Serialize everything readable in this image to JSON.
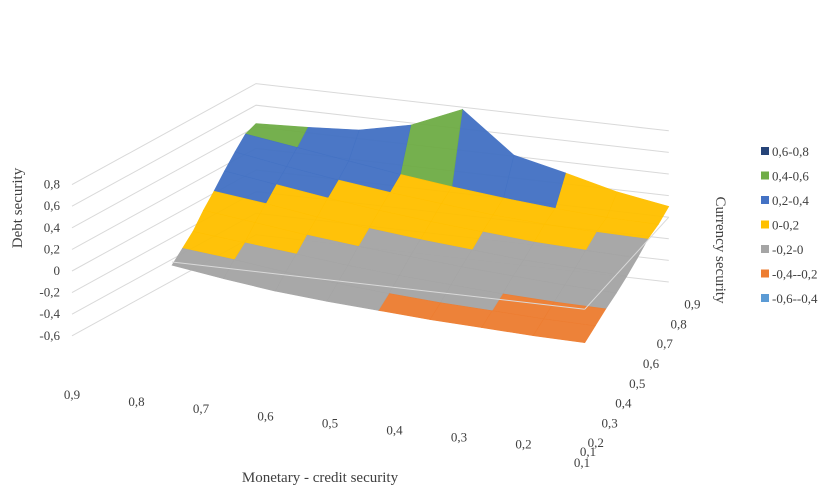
{
  "chart_data": {
    "type": "surface",
    "title": "",
    "xlabel": "Monetary - credit security",
    "ylabel": "Debt security",
    "zlabel": "Currency security",
    "x_ticks": [
      "0,9",
      "0,8",
      "0,7",
      "0,6",
      "0,5",
      "0,4",
      "0,3",
      "0,2",
      "0,1"
    ],
    "depth_ticks": [
      "0,1",
      "0,2",
      "0,3",
      "0,4",
      "0,5",
      "0,6",
      "0,7",
      "0,8",
      "0,9"
    ],
    "y_ticks": [
      "0,8",
      "0,6",
      "0,4",
      "0,2",
      "0",
      "-0,2",
      "-0,4",
      "-0,6"
    ],
    "ylim": [
      -0.6,
      0.8
    ],
    "x": [
      0.9,
      0.8,
      0.7,
      0.6,
      0.5,
      0.4,
      0.3,
      0.2,
      0.1
    ],
    "depth": [
      0.1,
      0.2,
      0.3,
      0.4,
      0.5,
      0.6,
      0.7,
      0.8,
      0.9
    ],
    "z": [
      [
        -0.03,
        -0.1,
        -0.16,
        -0.2,
        -0.23,
        -0.26,
        -0.28,
        -0.3,
        -0.31
      ],
      [
        0.02,
        -0.03,
        -0.09,
        -0.14,
        -0.18,
        -0.21,
        -0.23,
        -0.25,
        -0.26
      ],
      [
        0.07,
        0.02,
        -0.03,
        -0.08,
        -0.12,
        -0.15,
        -0.18,
        -0.2,
        -0.21
      ],
      [
        0.16,
        0.1,
        0.04,
        -0.01,
        -0.05,
        -0.09,
        -0.12,
        -0.15,
        -0.17
      ],
      [
        0.23,
        0.17,
        0.1,
        0.05,
        0.0,
        -0.04,
        -0.08,
        -0.1,
        -0.12
      ],
      [
        0.31,
        0.24,
        0.17,
        0.11,
        0.06,
        0.02,
        -0.02,
        -0.04,
        -0.06
      ],
      [
        0.38,
        0.3,
        0.23,
        0.17,
        0.12,
        0.07,
        0.04,
        0.02,
        0.01
      ],
      [
        0.44,
        0.37,
        0.3,
        0.23,
        0.17,
        0.12,
        0.08,
        0.05,
        0.04
      ],
      [
        0.43,
        0.45,
        0.48,
        0.58,
        0.78,
        0.41,
        0.3,
        0.18,
        0.1
      ]
    ],
    "legend": [
      {
        "label": "0,6-0,8",
        "color": "#264478"
      },
      {
        "label": "0,4-0,6",
        "color": "#70ad47"
      },
      {
        "label": "0,2-0,4",
        "color": "#4472c4"
      },
      {
        "label": "0-0,2",
        "color": "#ffc000"
      },
      {
        "label": "-0,2-0",
        "color": "#a5a5a5"
      },
      {
        "label": "-0,4--0,2",
        "color": "#ed7d31"
      },
      {
        "label": "-0,6--0,4",
        "color": "#5b9bd5"
      }
    ],
    "legend_position": "right",
    "grid": true
  }
}
